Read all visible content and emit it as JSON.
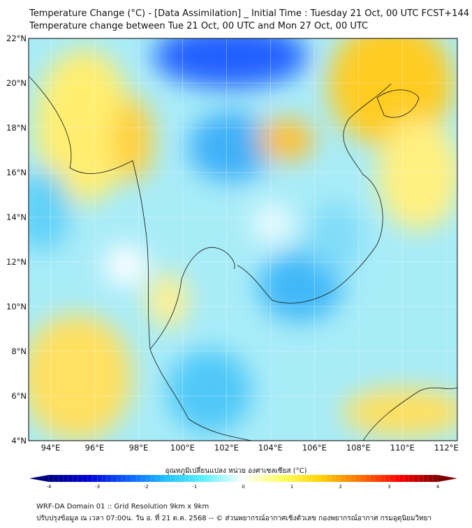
{
  "title_line1": "Temperature Change (°C) - [Data Assimilation] _ Initial Time : Tuesday 21 Oct, 00 UTC FCST+144",
  "title_line2": "Temperature change between Tue 21 Oct, 00 UTC and Mon 27 Oct, 00 UTC",
  "map": {
    "lat_range": [
      4,
      22
    ],
    "lon_range": [
      93,
      112.5
    ],
    "lat_labels": [
      "4°N",
      "6°N",
      "8°N",
      "10°N",
      "12°N",
      "14°N",
      "16°N",
      "18°N",
      "20°N",
      "22°N"
    ],
    "lon_labels": [
      "94°E",
      "96°E",
      "98°E",
      "100°E",
      "102°E",
      "104°E",
      "106°E",
      "108°E",
      "110°E",
      "112°E"
    ]
  },
  "colorbar": {
    "label": "อุณหภูมิเปลี่ยนแปลง หน่วย องศาเซลเซียส (°C)",
    "min": -4,
    "max": 4,
    "ticks": [
      "-4",
      "-3",
      "-2",
      "-1",
      "0",
      "1",
      "2",
      "3",
      "4"
    ],
    "colors": [
      "#00007f",
      "#0000d8",
      "#0a5cff",
      "#20c0ff",
      "#60f0ff",
      "#ffffff",
      "#ffff60",
      "#ffd000",
      "#ff7000",
      "#ff0000",
      "#7f0000"
    ]
  },
  "footer_line1": "WRF-DA Domain 01 :: Grid Resolution 9km x 9km",
  "footer_line2": "ปรับปรุงข้อมูล ณ เวลา 07:00น. วัน อ. ที่ 21 ต.ค. 2568 -- © ส่วนพยากรณ์อากาศเชิงตัวเลข กองพยากรณ์อากาศ กรมอุตุนิยมวิทยา"
}
